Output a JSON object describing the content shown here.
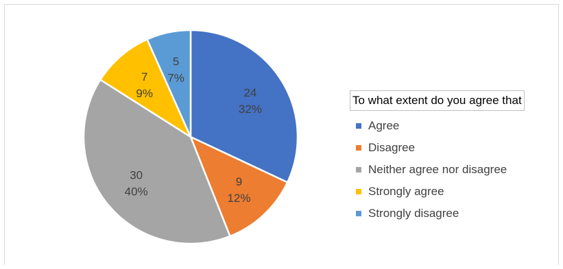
{
  "chart_data": {
    "type": "pie",
    "legend_title": "To what extent do you agree that",
    "legend_position": "right",
    "slices": [
      {
        "label": "Agree",
        "value": 24,
        "percent": "32%",
        "color": "#4472c4"
      },
      {
        "label": "Disagree",
        "value": 9,
        "percent": "12%",
        "color": "#ed7d31"
      },
      {
        "label": "Neither agree nor disagree",
        "value": 30,
        "percent": "40%",
        "color": "#a5a5a5"
      },
      {
        "label": "Strongly agree",
        "value": 7,
        "percent": "9%",
        "color": "#ffc000"
      },
      {
        "label": "Strongly disagree",
        "value": 5,
        "percent": "7%",
        "color": "#5b9bd5"
      }
    ]
  }
}
